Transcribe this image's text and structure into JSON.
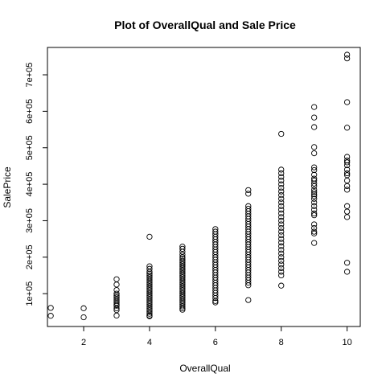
{
  "chart_data": {
    "type": "scatter",
    "title": "Plot of OverallQual and Sale Price",
    "xlabel": "OverallQual",
    "ylabel": "SalePrice",
    "xlim": [
      0.9,
      10.4
    ],
    "ylim": [
      10000,
      775000
    ],
    "grid": false,
    "x_ticks": [
      2,
      4,
      6,
      8,
      10
    ],
    "x_tick_labels": [
      "2",
      "4",
      "6",
      "8",
      "10"
    ],
    "y_ticks": [
      100000,
      200000,
      300000,
      400000,
      500000,
      600000,
      700000
    ],
    "y_tick_labels": [
      "1e+05",
      "2e+05",
      "3e+05",
      "4e+05",
      "5e+05",
      "6e+05",
      "7e+05"
    ],
    "series": [
      {
        "points": [
          [
            1,
            61000
          ],
          [
            1,
            39300
          ],
          [
            2,
            60000
          ],
          [
            2,
            35311
          ],
          [
            3,
            139600
          ],
          [
            3,
            125000
          ],
          [
            3,
            110000
          ],
          [
            3,
            100000
          ],
          [
            3,
            95000
          ],
          [
            3,
            90000
          ],
          [
            3,
            85000
          ],
          [
            3,
            80000
          ],
          [
            3,
            75000
          ],
          [
            3,
            70000
          ],
          [
            3,
            67000
          ],
          [
            3,
            60000
          ],
          [
            3,
            55000
          ],
          [
            3,
            40000
          ],
          [
            4,
            256000
          ],
          [
            4,
            175000
          ],
          [
            4,
            168000
          ],
          [
            4,
            160000
          ],
          [
            4,
            155000
          ],
          [
            4,
            150000
          ],
          [
            4,
            145000
          ],
          [
            4,
            140000
          ],
          [
            4,
            135000
          ],
          [
            4,
            130000
          ],
          [
            4,
            125000
          ],
          [
            4,
            120000
          ],
          [
            4,
            115000
          ],
          [
            4,
            110000
          ],
          [
            4,
            105000
          ],
          [
            4,
            100000
          ],
          [
            4,
            95000
          ],
          [
            4,
            90000
          ],
          [
            4,
            85000
          ],
          [
            4,
            80000
          ],
          [
            4,
            75000
          ],
          [
            4,
            70000
          ],
          [
            4,
            65000
          ],
          [
            4,
            60000
          ],
          [
            4,
            55000
          ],
          [
            4,
            50000
          ],
          [
            4,
            45000
          ],
          [
            4,
            40000
          ],
          [
            4,
            37900
          ],
          [
            5,
            228950
          ],
          [
            5,
            223000
          ],
          [
            5,
            215000
          ],
          [
            5,
            207000
          ],
          [
            5,
            200000
          ],
          [
            5,
            195000
          ],
          [
            5,
            190000
          ],
          [
            5,
            185000
          ],
          [
            5,
            180000
          ],
          [
            5,
            175000
          ],
          [
            5,
            170000
          ],
          [
            5,
            165000
          ],
          [
            5,
            160000
          ],
          [
            5,
            155000
          ],
          [
            5,
            150000
          ],
          [
            5,
            145000
          ],
          [
            5,
            140000
          ],
          [
            5,
            135000
          ],
          [
            5,
            130000
          ],
          [
            5,
            125000
          ],
          [
            5,
            120000
          ],
          [
            5,
            115000
          ],
          [
            5,
            110000
          ],
          [
            5,
            105000
          ],
          [
            5,
            100000
          ],
          [
            5,
            95000
          ],
          [
            5,
            90000
          ],
          [
            5,
            85000
          ],
          [
            5,
            80000
          ],
          [
            5,
            75000
          ],
          [
            5,
            70000
          ],
          [
            5,
            65000
          ],
          [
            5,
            60000
          ],
          [
            5,
            55993
          ],
          [
            6,
            277000
          ],
          [
            6,
            270000
          ],
          [
            6,
            263000
          ],
          [
            6,
            256000
          ],
          [
            6,
            249000
          ],
          [
            6,
            242000
          ],
          [
            6,
            235000
          ],
          [
            6,
            228000
          ],
          [
            6,
            221000
          ],
          [
            6,
            214000
          ],
          [
            6,
            207000
          ],
          [
            6,
            200000
          ],
          [
            6,
            193000
          ],
          [
            6,
            186000
          ],
          [
            6,
            179000
          ],
          [
            6,
            172000
          ],
          [
            6,
            165000
          ],
          [
            6,
            158000
          ],
          [
            6,
            151000
          ],
          [
            6,
            144000
          ],
          [
            6,
            137000
          ],
          [
            6,
            130000
          ],
          [
            6,
            123000
          ],
          [
            6,
            116000
          ],
          [
            6,
            109000
          ],
          [
            6,
            102000
          ],
          [
            6,
            95000
          ],
          [
            6,
            88000
          ],
          [
            6,
            80000
          ],
          [
            6,
            76000
          ],
          [
            7,
            383970
          ],
          [
            7,
            374000
          ],
          [
            7,
            340000
          ],
          [
            7,
            333000
          ],
          [
            7,
            326000
          ],
          [
            7,
            319000
          ],
          [
            7,
            312000
          ],
          [
            7,
            305000
          ],
          [
            7,
            298000
          ],
          [
            7,
            291000
          ],
          [
            7,
            284000
          ],
          [
            7,
            277000
          ],
          [
            7,
            270000
          ],
          [
            7,
            263000
          ],
          [
            7,
            256000
          ],
          [
            7,
            249000
          ],
          [
            7,
            242000
          ],
          [
            7,
            235000
          ],
          [
            7,
            228000
          ],
          [
            7,
            221000
          ],
          [
            7,
            214000
          ],
          [
            7,
            207000
          ],
          [
            7,
            200000
          ],
          [
            7,
            193000
          ],
          [
            7,
            186000
          ],
          [
            7,
            179000
          ],
          [
            7,
            172000
          ],
          [
            7,
            165000
          ],
          [
            7,
            158000
          ],
          [
            7,
            151000
          ],
          [
            7,
            144000
          ],
          [
            7,
            137000
          ],
          [
            7,
            130000
          ],
          [
            7,
            123000
          ],
          [
            7,
            82500
          ],
          [
            8,
            538000
          ],
          [
            8,
            440000
          ],
          [
            8,
            430000
          ],
          [
            8,
            420000
          ],
          [
            8,
            410000
          ],
          [
            8,
            400000
          ],
          [
            8,
            390000
          ],
          [
            8,
            380000
          ],
          [
            8,
            370000
          ],
          [
            8,
            360000
          ],
          [
            8,
            350000
          ],
          [
            8,
            340000
          ],
          [
            8,
            330000
          ],
          [
            8,
            320000
          ],
          [
            8,
            310000
          ],
          [
            8,
            300000
          ],
          [
            8,
            290000
          ],
          [
            8,
            280000
          ],
          [
            8,
            270000
          ],
          [
            8,
            260000
          ],
          [
            8,
            250000
          ],
          [
            8,
            240000
          ],
          [
            8,
            230000
          ],
          [
            8,
            220000
          ],
          [
            8,
            210000
          ],
          [
            8,
            200000
          ],
          [
            8,
            190000
          ],
          [
            8,
            180000
          ],
          [
            8,
            170000
          ],
          [
            8,
            160000
          ],
          [
            8,
            150000
          ],
          [
            8,
            122000
          ],
          [
            9,
            611657
          ],
          [
            9,
            582933
          ],
          [
            9,
            556581
          ],
          [
            9,
            501837
          ],
          [
            9,
            485000
          ],
          [
            9,
            446261
          ],
          [
            9,
            438780
          ],
          [
            9,
            426000
          ],
          [
            9,
            415298
          ],
          [
            9,
            410000
          ],
          [
            9,
            402000
          ],
          [
            9,
            395000
          ],
          [
            9,
            385000
          ],
          [
            9,
            378500
          ],
          [
            9,
            372500
          ],
          [
            9,
            367294
          ],
          [
            9,
            360000
          ],
          [
            9,
            350000
          ],
          [
            9,
            340000
          ],
          [
            9,
            330000
          ],
          [
            9,
            320000
          ],
          [
            9,
            315000
          ],
          [
            9,
            290000
          ],
          [
            9,
            280000
          ],
          [
            9,
            270000
          ],
          [
            9,
            265000
          ],
          [
            9,
            239000
          ],
          [
            10,
            755000
          ],
          [
            10,
            745000
          ],
          [
            10,
            625000
          ],
          [
            10,
            555000
          ],
          [
            10,
            475000
          ],
          [
            10,
            465000
          ],
          [
            10,
            460000
          ],
          [
            10,
            451950
          ],
          [
            10,
            440000
          ],
          [
            10,
            430000
          ],
          [
            10,
            425000
          ],
          [
            10,
            410000
          ],
          [
            10,
            395000
          ],
          [
            10,
            385000
          ],
          [
            10,
            340000
          ],
          [
            10,
            325000
          ],
          [
            10,
            310000
          ],
          [
            10,
            184750
          ],
          [
            10,
            160000
          ]
        ]
      }
    ]
  }
}
